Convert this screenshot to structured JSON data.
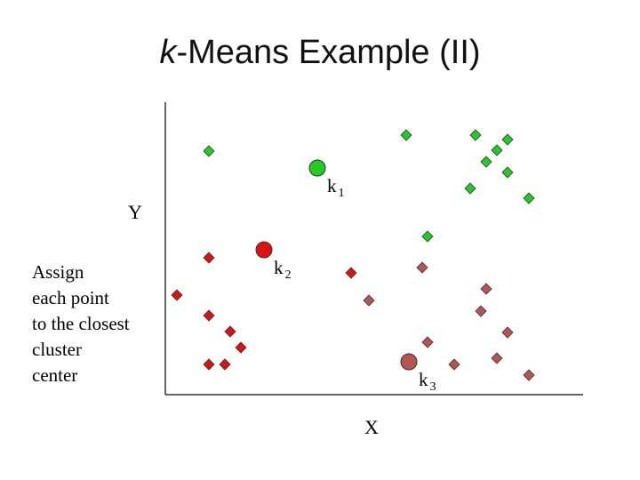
{
  "title": {
    "italic_part": "k",
    "rest": "-Means Example (II)"
  },
  "axes": {
    "x_label": "X",
    "y_label": "Y"
  },
  "instruction_lines": [
    "Assign",
    "each point",
    "to the closest",
    "cluster",
    "center"
  ],
  "colors": {
    "cluster_1": "#22cc22",
    "cluster_2": "#dd1111",
    "cluster_3": "#b85450",
    "marker_stroke": "#333333"
  },
  "chart_data": {
    "type": "scatter",
    "xlabel": "X",
    "ylabel": "Y",
    "xlim": [
      0,
      470
    ],
    "ylim": [
      0,
      330
    ],
    "centers": [
      {
        "label_base": "k",
        "label_sub": "1",
        "cluster": "cluster_1",
        "x": 171,
        "y": 255
      },
      {
        "label_base": "k",
        "label_sub": "2",
        "cluster": "cluster_2",
        "x": 111,
        "y": 163
      },
      {
        "label_base": "k",
        "label_sub": "3",
        "cluster": "cluster_3",
        "x": 274,
        "y": 37
      }
    ],
    "points": [
      {
        "cluster": "cluster_1",
        "x": 49,
        "y": 274
      },
      {
        "cluster": "cluster_1",
        "x": 271,
        "y": 292
      },
      {
        "cluster": "cluster_1",
        "x": 349,
        "y": 292
      },
      {
        "cluster": "cluster_1",
        "x": 385,
        "y": 287
      },
      {
        "cluster": "cluster_1",
        "x": 373,
        "y": 275
      },
      {
        "cluster": "cluster_1",
        "x": 361,
        "y": 262
      },
      {
        "cluster": "cluster_1",
        "x": 385,
        "y": 250
      },
      {
        "cluster": "cluster_1",
        "x": 343,
        "y": 232
      },
      {
        "cluster": "cluster_1",
        "x": 409,
        "y": 221
      },
      {
        "cluster": "cluster_1",
        "x": 295,
        "y": 178
      },
      {
        "cluster": "cluster_2",
        "x": 49,
        "y": 154
      },
      {
        "cluster": "cluster_2",
        "x": 209,
        "y": 137
      },
      {
        "cluster": "cluster_2",
        "x": 13,
        "y": 112
      },
      {
        "cluster": "cluster_2",
        "x": 49,
        "y": 89
      },
      {
        "cluster": "cluster_2",
        "x": 73,
        "y": 71
      },
      {
        "cluster": "cluster_2",
        "x": 85,
        "y": 53
      },
      {
        "cluster": "cluster_2",
        "x": 49,
        "y": 34
      },
      {
        "cluster": "cluster_2",
        "x": 67,
        "y": 34
      },
      {
        "cluster": "cluster_3",
        "x": 289,
        "y": 143
      },
      {
        "cluster": "cluster_3",
        "x": 361,
        "y": 119
      },
      {
        "cluster": "cluster_3",
        "x": 229,
        "y": 106
      },
      {
        "cluster": "cluster_3",
        "x": 355,
        "y": 94
      },
      {
        "cluster": "cluster_3",
        "x": 385,
        "y": 70
      },
      {
        "cluster": "cluster_3",
        "x": 295,
        "y": 59
      },
      {
        "cluster": "cluster_3",
        "x": 373,
        "y": 41
      },
      {
        "cluster": "cluster_3",
        "x": 325,
        "y": 34
      },
      {
        "cluster": "cluster_3",
        "x": 409,
        "y": 22
      }
    ]
  }
}
